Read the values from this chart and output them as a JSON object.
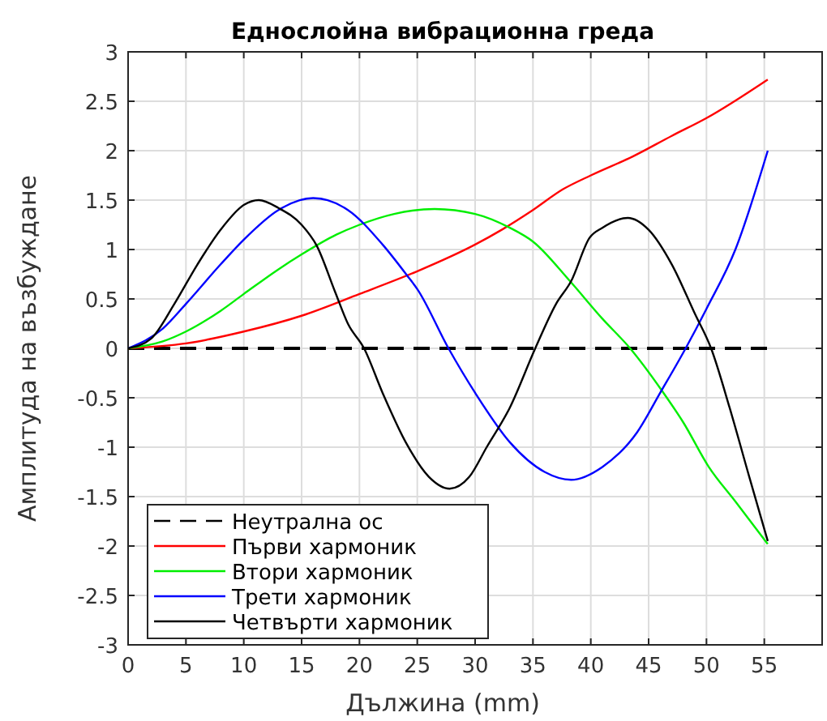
{
  "chart_data": {
    "type": "line",
    "title": "Еднослойна вибрационна греда",
    "xlabel": "Дължина (mm)",
    "ylabel": "Амплитуда на възбуждане",
    "xlim": [
      0,
      60
    ],
    "xticks": [
      0,
      5,
      10,
      15,
      20,
      25,
      30,
      35,
      40,
      45,
      50,
      55
    ],
    "ylim": [
      -3,
      3
    ],
    "yticks": [
      -3,
      -2.5,
      -2,
      -1.5,
      -1,
      -0.5,
      0,
      0.5,
      1,
      1.5,
      2,
      2.5,
      3
    ],
    "grid": true,
    "legend": "bottom left",
    "marker": "none",
    "series": [
      {
        "name": "Неутрална ос",
        "color": "#000000",
        "line_style": "dashed",
        "x": [
          0,
          55.3
        ],
        "values": [
          0,
          0
        ]
      },
      {
        "name": "Първи хармоник",
        "color": "#ff0000",
        "x": [
          0,
          5,
          10,
          15,
          20,
          25,
          30,
          32.3,
          35,
          37.6,
          40,
          43.6,
          47,
          50,
          55.3
        ],
        "values": [
          0,
          0.05,
          0.17,
          0.33,
          0.55,
          0.78,
          1.05,
          1.2,
          1.4,
          1.61,
          1.75,
          1.94,
          2.15,
          2.33,
          2.72
        ]
      },
      {
        "name": "Втори хармоник",
        "color": "#00ee00",
        "x": [
          0,
          3,
          5,
          8,
          10,
          13,
          15,
          18,
          20,
          23,
          26.5,
          30,
          33,
          35,
          38.2,
          41,
          43.4,
          46.1,
          48,
          50.2,
          52.5,
          55.3
        ],
        "values": [
          0,
          0.07,
          0.17,
          0.38,
          0.55,
          0.8,
          0.95,
          1.15,
          1.25,
          1.36,
          1.41,
          1.36,
          1.22,
          1.08,
          0.68,
          0.3,
          0,
          -0.42,
          -0.75,
          -1.2,
          -1.55,
          -1.98
        ]
      },
      {
        "name": "Трети хармоник",
        "color": "#0000ff",
        "x": [
          0,
          3,
          5,
          8,
          10,
          13,
          16,
          19,
          22,
          24.1,
          25,
          27.7,
          30,
          33,
          36,
          38.3,
          41,
          44,
          46,
          48.2,
          50,
          52.5,
          55.3
        ],
        "values": [
          0,
          0.2,
          0.45,
          0.85,
          1.1,
          1.4,
          1.52,
          1.4,
          1.05,
          0.74,
          0.6,
          0,
          -0.45,
          -0.95,
          -1.25,
          -1.33,
          -1.2,
          -0.85,
          -0.45,
          0,
          0.4,
          1.0,
          2.0
        ]
      },
      {
        "name": "Четвърти хармоник",
        "color": "#000000",
        "x": [
          0,
          2,
          4,
          6,
          8,
          10,
          11.3,
          13,
          15,
          16.3,
          17.9,
          19,
          20.4,
          22,
          24,
          26,
          27.8,
          29.5,
          31,
          33,
          35.2,
          37,
          38.3,
          39.9,
          41,
          43.2,
          45,
          47,
          49,
          50.4,
          52,
          53.7,
          55.3
        ],
        "values": [
          0,
          0.1,
          0.45,
          0.85,
          1.2,
          1.45,
          1.5,
          1.42,
          1.25,
          1.04,
          0.57,
          0.25,
          0,
          -0.45,
          -0.95,
          -1.3,
          -1.42,
          -1.3,
          -1.0,
          -0.6,
          0,
          0.45,
          0.68,
          1.12,
          1.22,
          1.32,
          1.2,
          0.85,
          0.35,
          0,
          -0.6,
          -1.3,
          -1.95
        ]
      }
    ]
  }
}
